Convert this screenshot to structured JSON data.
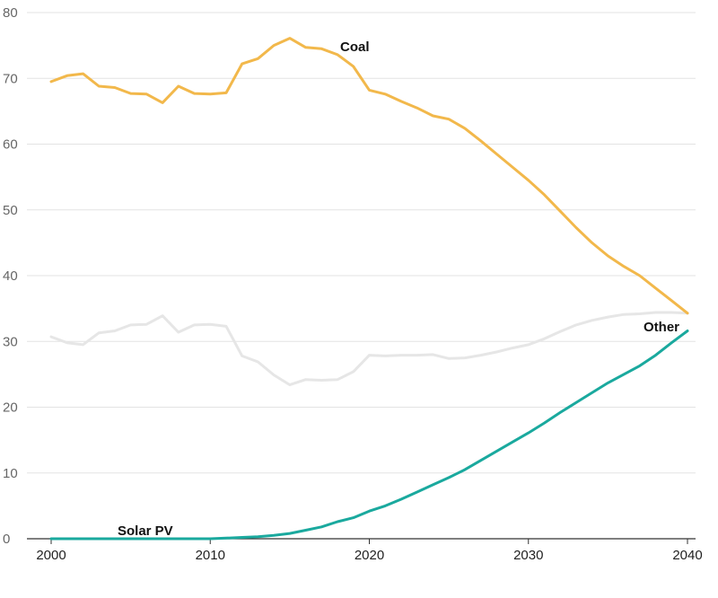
{
  "chart_data": {
    "type": "line",
    "title": "",
    "xlabel": "",
    "ylabel": "",
    "xlim": [
      2000,
      2040
    ],
    "ylim": [
      0,
      80
    ],
    "x_ticks": [
      2000,
      2010,
      2020,
      2030,
      2040
    ],
    "y_ticks": [
      0,
      10,
      20,
      30,
      40,
      50,
      60,
      70,
      80
    ],
    "grid": "horizontal",
    "legend": "direct labels",
    "x": [
      2000,
      2001,
      2002,
      2003,
      2004,
      2005,
      2006,
      2007,
      2008,
      2009,
      2010,
      2011,
      2012,
      2013,
      2014,
      2015,
      2016,
      2017,
      2018,
      2019,
      2020,
      2021,
      2022,
      2023,
      2024,
      2025,
      2026,
      2027,
      2028,
      2029,
      2030,
      2031,
      2032,
      2033,
      2034,
      2035,
      2036,
      2037,
      2038,
      2039,
      2040
    ],
    "series": [
      {
        "name": "Coal",
        "color": "#f2b84b",
        "values": [
          69.5,
          70.4,
          70.7,
          68.8,
          68.6,
          67.7,
          67.6,
          66.3,
          68.8,
          67.7,
          67.6,
          67.8,
          72.2,
          73.0,
          75.0,
          76.1,
          74.7,
          74.5,
          73.6,
          71.8,
          68.2,
          67.6,
          66.5,
          65.5,
          64.3,
          63.8,
          62.4,
          60.5,
          58.5,
          56.5,
          54.5,
          52.3,
          49.8,
          47.3,
          45.0,
          43.0,
          41.4,
          40.0,
          38.1,
          36.2,
          34.3
        ]
      },
      {
        "name": "Other",
        "color": "#e6e6e6",
        "values": [
          30.7,
          29.8,
          29.5,
          31.3,
          31.6,
          32.5,
          32.6,
          33.9,
          31.4,
          32.5,
          32.6,
          32.3,
          27.8,
          26.9,
          24.9,
          23.4,
          24.2,
          24.1,
          24.2,
          25.4,
          27.9,
          27.8,
          27.9,
          27.9,
          28.0,
          27.4,
          27.5,
          27.9,
          28.4,
          29.0,
          29.5,
          30.4,
          31.5,
          32.5,
          33.2,
          33.7,
          34.1,
          34.2,
          34.4,
          34.4,
          34.3
        ]
      },
      {
        "name": "Solar PV",
        "color": "#1aa99e",
        "values": [
          0,
          0,
          0,
          0,
          0,
          0,
          0,
          0,
          0,
          0,
          0,
          0.1,
          0.2,
          0.3,
          0.5,
          0.8,
          1.3,
          1.8,
          2.6,
          3.2,
          4.2,
          5.0,
          6.0,
          7.1,
          8.2,
          9.3,
          10.5,
          11.9,
          13.3,
          14.7,
          16.1,
          17.6,
          19.2,
          20.7,
          22.2,
          23.7,
          25.0,
          26.3,
          27.9,
          29.8,
          31.6
        ]
      }
    ],
    "labels": {
      "coal": "Coal",
      "other": "Other",
      "solar": "Solar PV"
    }
  }
}
